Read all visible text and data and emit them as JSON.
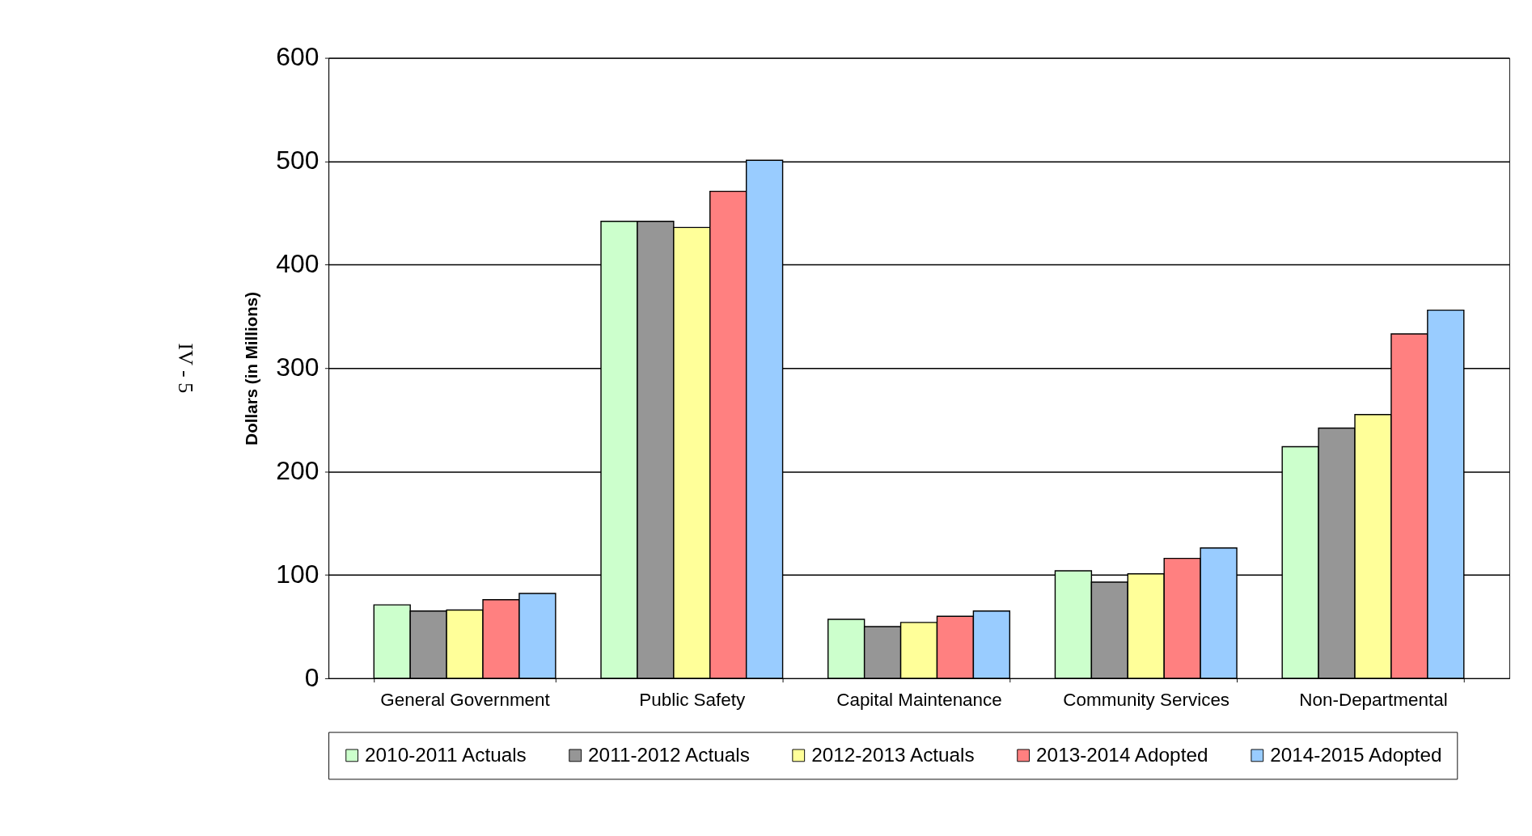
{
  "chart_data": {
    "type": "bar",
    "ylabel": "Dollars (in Millions)",
    "categories": [
      "General Government",
      "Public Safety",
      "Capital Maintenance",
      "Community Services",
      "Non-Departmental"
    ],
    "series": [
      {
        "name": "2010-2011 Actuals",
        "color": "#ccffcc",
        "values": [
          71,
          442,
          57,
          104,
          224
        ]
      },
      {
        "name": "2011-2012 Actuals",
        "color": "#969696",
        "values": [
          65,
          442,
          50,
          93,
          242
        ]
      },
      {
        "name": "2012-2013 Actuals",
        "color": "#ffff99",
        "values": [
          66,
          436,
          54,
          101,
          255
        ]
      },
      {
        "name": "2013-2014 Adopted",
        "color": "#ff8080",
        "values": [
          76,
          471,
          60,
          116,
          333
        ]
      },
      {
        "name": "2014-2015 Adopted",
        "color": "#99ccff",
        "values": [
          82,
          501,
          65,
          126,
          356
        ]
      }
    ],
    "ylim": [
      0,
      600
    ],
    "yticks": [
      0,
      100,
      200,
      300,
      400,
      500,
      600
    ],
    "grid": "y",
    "legend": "bottom",
    "annotations": [
      "IV - 5"
    ]
  }
}
